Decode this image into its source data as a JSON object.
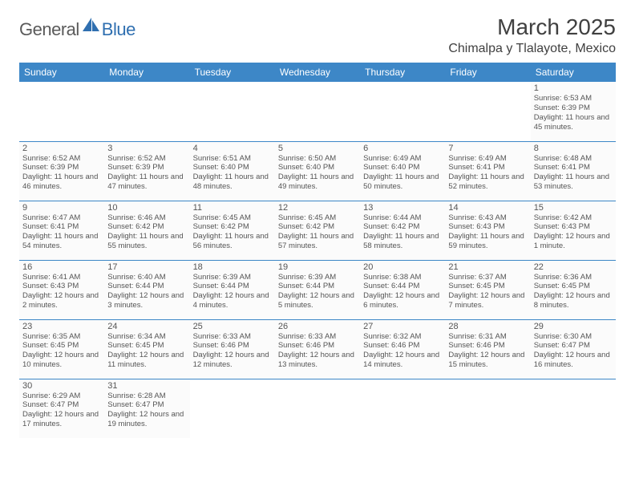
{
  "brand": {
    "part1": "General",
    "part2": "Blue"
  },
  "title": "March 2025",
  "location": "Chimalpa y Tlalayote, Mexico",
  "colors": {
    "header_bg": "#3d87c7",
    "header_fg": "#ffffff",
    "border": "#3d87c7",
    "cell_bg": "#fbfbfb",
    "text": "#555555",
    "brand_gray": "#5a5a5a",
    "brand_blue": "#2f6fb0"
  },
  "weekdays": [
    "Sunday",
    "Monday",
    "Tuesday",
    "Wednesday",
    "Thursday",
    "Friday",
    "Saturday"
  ],
  "weeks": [
    [
      null,
      null,
      null,
      null,
      null,
      null,
      {
        "n": "1",
        "sr": "Sunrise: 6:53 AM",
        "ss": "Sunset: 6:39 PM",
        "dl": "Daylight: 11 hours and 45 minutes."
      }
    ],
    [
      {
        "n": "2",
        "sr": "Sunrise: 6:52 AM",
        "ss": "Sunset: 6:39 PM",
        "dl": "Daylight: 11 hours and 46 minutes."
      },
      {
        "n": "3",
        "sr": "Sunrise: 6:52 AM",
        "ss": "Sunset: 6:39 PM",
        "dl": "Daylight: 11 hours and 47 minutes."
      },
      {
        "n": "4",
        "sr": "Sunrise: 6:51 AM",
        "ss": "Sunset: 6:40 PM",
        "dl": "Daylight: 11 hours and 48 minutes."
      },
      {
        "n": "5",
        "sr": "Sunrise: 6:50 AM",
        "ss": "Sunset: 6:40 PM",
        "dl": "Daylight: 11 hours and 49 minutes."
      },
      {
        "n": "6",
        "sr": "Sunrise: 6:49 AM",
        "ss": "Sunset: 6:40 PM",
        "dl": "Daylight: 11 hours and 50 minutes."
      },
      {
        "n": "7",
        "sr": "Sunrise: 6:49 AM",
        "ss": "Sunset: 6:41 PM",
        "dl": "Daylight: 11 hours and 52 minutes."
      },
      {
        "n": "8",
        "sr": "Sunrise: 6:48 AM",
        "ss": "Sunset: 6:41 PM",
        "dl": "Daylight: 11 hours and 53 minutes."
      }
    ],
    [
      {
        "n": "9",
        "sr": "Sunrise: 6:47 AM",
        "ss": "Sunset: 6:41 PM",
        "dl": "Daylight: 11 hours and 54 minutes."
      },
      {
        "n": "10",
        "sr": "Sunrise: 6:46 AM",
        "ss": "Sunset: 6:42 PM",
        "dl": "Daylight: 11 hours and 55 minutes."
      },
      {
        "n": "11",
        "sr": "Sunrise: 6:45 AM",
        "ss": "Sunset: 6:42 PM",
        "dl": "Daylight: 11 hours and 56 minutes."
      },
      {
        "n": "12",
        "sr": "Sunrise: 6:45 AM",
        "ss": "Sunset: 6:42 PM",
        "dl": "Daylight: 11 hours and 57 minutes."
      },
      {
        "n": "13",
        "sr": "Sunrise: 6:44 AM",
        "ss": "Sunset: 6:42 PM",
        "dl": "Daylight: 11 hours and 58 minutes."
      },
      {
        "n": "14",
        "sr": "Sunrise: 6:43 AM",
        "ss": "Sunset: 6:43 PM",
        "dl": "Daylight: 11 hours and 59 minutes."
      },
      {
        "n": "15",
        "sr": "Sunrise: 6:42 AM",
        "ss": "Sunset: 6:43 PM",
        "dl": "Daylight: 12 hours and 1 minute."
      }
    ],
    [
      {
        "n": "16",
        "sr": "Sunrise: 6:41 AM",
        "ss": "Sunset: 6:43 PM",
        "dl": "Daylight: 12 hours and 2 minutes."
      },
      {
        "n": "17",
        "sr": "Sunrise: 6:40 AM",
        "ss": "Sunset: 6:44 PM",
        "dl": "Daylight: 12 hours and 3 minutes."
      },
      {
        "n": "18",
        "sr": "Sunrise: 6:39 AM",
        "ss": "Sunset: 6:44 PM",
        "dl": "Daylight: 12 hours and 4 minutes."
      },
      {
        "n": "19",
        "sr": "Sunrise: 6:39 AM",
        "ss": "Sunset: 6:44 PM",
        "dl": "Daylight: 12 hours and 5 minutes."
      },
      {
        "n": "20",
        "sr": "Sunrise: 6:38 AM",
        "ss": "Sunset: 6:44 PM",
        "dl": "Daylight: 12 hours and 6 minutes."
      },
      {
        "n": "21",
        "sr": "Sunrise: 6:37 AM",
        "ss": "Sunset: 6:45 PM",
        "dl": "Daylight: 12 hours and 7 minutes."
      },
      {
        "n": "22",
        "sr": "Sunrise: 6:36 AM",
        "ss": "Sunset: 6:45 PM",
        "dl": "Daylight: 12 hours and 8 minutes."
      }
    ],
    [
      {
        "n": "23",
        "sr": "Sunrise: 6:35 AM",
        "ss": "Sunset: 6:45 PM",
        "dl": "Daylight: 12 hours and 10 minutes."
      },
      {
        "n": "24",
        "sr": "Sunrise: 6:34 AM",
        "ss": "Sunset: 6:45 PM",
        "dl": "Daylight: 12 hours and 11 minutes."
      },
      {
        "n": "25",
        "sr": "Sunrise: 6:33 AM",
        "ss": "Sunset: 6:46 PM",
        "dl": "Daylight: 12 hours and 12 minutes."
      },
      {
        "n": "26",
        "sr": "Sunrise: 6:33 AM",
        "ss": "Sunset: 6:46 PM",
        "dl": "Daylight: 12 hours and 13 minutes."
      },
      {
        "n": "27",
        "sr": "Sunrise: 6:32 AM",
        "ss": "Sunset: 6:46 PM",
        "dl": "Daylight: 12 hours and 14 minutes."
      },
      {
        "n": "28",
        "sr": "Sunrise: 6:31 AM",
        "ss": "Sunset: 6:46 PM",
        "dl": "Daylight: 12 hours and 15 minutes."
      },
      {
        "n": "29",
        "sr": "Sunrise: 6:30 AM",
        "ss": "Sunset: 6:47 PM",
        "dl": "Daylight: 12 hours and 16 minutes."
      }
    ],
    [
      {
        "n": "30",
        "sr": "Sunrise: 6:29 AM",
        "ss": "Sunset: 6:47 PM",
        "dl": "Daylight: 12 hours and 17 minutes."
      },
      {
        "n": "31",
        "sr": "Sunrise: 6:28 AM",
        "ss": "Sunset: 6:47 PM",
        "dl": "Daylight: 12 hours and 19 minutes."
      },
      null,
      null,
      null,
      null,
      null
    ]
  ]
}
